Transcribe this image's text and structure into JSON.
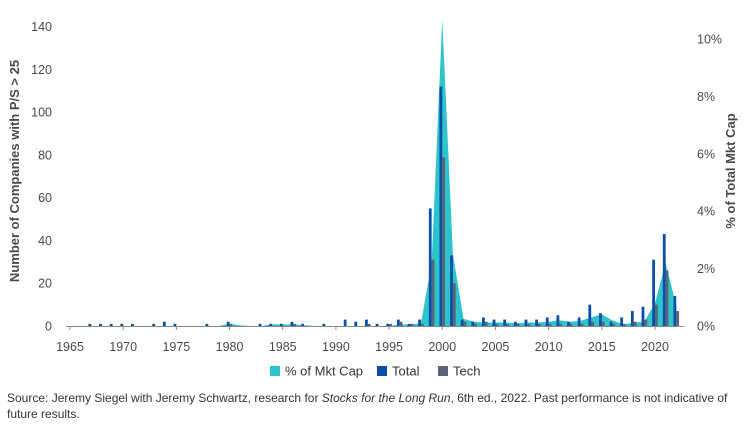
{
  "chart_data": {
    "type": "bar",
    "x": [
      1965,
      1966,
      1967,
      1968,
      1969,
      1970,
      1971,
      1972,
      1973,
      1974,
      1975,
      1976,
      1977,
      1978,
      1979,
      1980,
      1981,
      1982,
      1983,
      1984,
      1985,
      1986,
      1987,
      1988,
      1989,
      1990,
      1991,
      1992,
      1993,
      1994,
      1995,
      1996,
      1997,
      1998,
      1999,
      2000,
      2001,
      2002,
      2003,
      2004,
      2005,
      2006,
      2007,
      2008,
      2009,
      2010,
      2011,
      2012,
      2013,
      2014,
      2015,
      2016,
      2017,
      2018,
      2019,
      2020,
      2021,
      2022
    ],
    "series": [
      {
        "name": "% of Mkt Cap",
        "kind": "area",
        "axis": "right",
        "color": "#2ec4cc",
        "values": [
          0,
          0,
          0,
          0,
          0,
          0,
          0,
          0,
          0,
          0,
          0,
          0,
          0,
          0,
          0,
          0.08,
          0.02,
          0,
          0,
          0.06,
          0.05,
          0.05,
          0.03,
          0,
          0,
          0,
          0,
          0,
          0,
          0,
          0,
          0.05,
          0.05,
          0.1,
          2.2,
          10.7,
          2.5,
          0.25,
          0.15,
          0.12,
          0.12,
          0.12,
          0.1,
          0.12,
          0.12,
          0.15,
          0.2,
          0.15,
          0.18,
          0.3,
          0.4,
          0.2,
          0.05,
          0.12,
          0.15,
          0.8,
          2.2,
          0.7
        ]
      },
      {
        "name": "Total",
        "kind": "bar",
        "axis": "left",
        "color": "#0a4ea8",
        "values": [
          0,
          0,
          1,
          1,
          1,
          1,
          1,
          0,
          1,
          2,
          1,
          0,
          0,
          1,
          0,
          2,
          0,
          0,
          1,
          1,
          1,
          2,
          1,
          0,
          1,
          0,
          3,
          2,
          3,
          1,
          1,
          3,
          1,
          3,
          55,
          112,
          33,
          3,
          2,
          4,
          3,
          3,
          2,
          3,
          3,
          4,
          5,
          2,
          4,
          10,
          6,
          2,
          4,
          7,
          9,
          31,
          43,
          14
        ]
      },
      {
        "name": "Tech",
        "kind": "bar",
        "axis": "left",
        "color": "#5a6575",
        "values": [
          0,
          0,
          0,
          0,
          0,
          0,
          0,
          0,
          0,
          0,
          0,
          0,
          0,
          0,
          0,
          1,
          0,
          0,
          0,
          0,
          0,
          1,
          0,
          0,
          0,
          0,
          0,
          0,
          1,
          0,
          1,
          2,
          1,
          1,
          31,
          79,
          20,
          2,
          1,
          2,
          1,
          1,
          1,
          1,
          1,
          1,
          1,
          1,
          1,
          2,
          2,
          1,
          1,
          2,
          3,
          10,
          26,
          7
        ]
      }
    ],
    "xticks": [
      "1965",
      "1970",
      "1975",
      "1980",
      "1985",
      "1990",
      "1995",
      "2000",
      "2005",
      "2010",
      "2015",
      "2020"
    ],
    "ylabel": "Number of Companies with P/S > 25",
    "ylim": [
      0,
      145
    ],
    "yticks": [
      "0",
      "20",
      "40",
      "60",
      "80",
      "100",
      "120",
      "140"
    ],
    "y2label": "% of Total Mkt Cap",
    "y2lim": [
      0,
      10.8
    ],
    "y2ticks": [
      "0%",
      "2%",
      "4%",
      "6%",
      "8%",
      "10%"
    ],
    "legend": [
      "% of Mkt Cap",
      "Total",
      "Tech"
    ],
    "legend_position": "bottom"
  },
  "source": {
    "prefix": "Source: Jeremy Siegel with Jeremy Schwartz, research for ",
    "book": "Stocks for the Long Run",
    "suffix": ", 6th ed., 2022. Past performance is not indicative of future results."
  }
}
